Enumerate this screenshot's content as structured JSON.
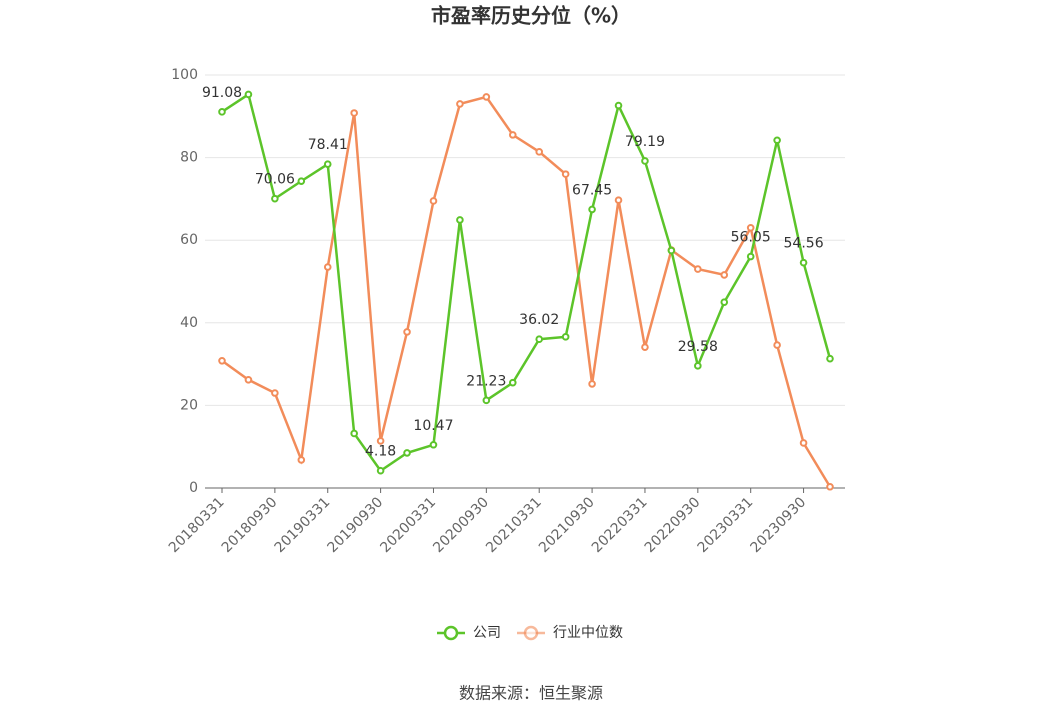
{
  "chart_data": {
    "type": "line",
    "title": "市盈率历史分位（%）",
    "categories": [
      "20180331",
      null,
      "20180930",
      null,
      "20190331",
      null,
      "20190930",
      null,
      "20200331",
      null,
      "20200930",
      null,
      "20210331",
      null,
      "20210930",
      null,
      "20220331",
      null,
      "20220930",
      null,
      "20230331",
      null,
      "20230930",
      null
    ],
    "series": [
      {
        "name": "公司",
        "color": "#5cc42a",
        "values": [
          91.08,
          95.3,
          70.06,
          74.3,
          78.41,
          13.2,
          4.18,
          8.5,
          10.47,
          64.9,
          21.23,
          25.5,
          36.02,
          36.6,
          67.45,
          92.6,
          79.19,
          57.5,
          29.58,
          45.0,
          56.05,
          84.2,
          54.56,
          31.3
        ],
        "value_labels": [
          "91.08",
          null,
          "70.06",
          null,
          "78.41",
          null,
          "4.18",
          null,
          "10.47",
          null,
          "21.23",
          null,
          "36.02",
          null,
          "67.45",
          null,
          "79.19",
          null,
          "29.58",
          null,
          "56.05",
          null,
          "54.56",
          null
        ]
      },
      {
        "name": "行业中位数",
        "color": "#f28c5a",
        "values": [
          30.8,
          26.2,
          23.0,
          6.8,
          53.5,
          90.8,
          11.4,
          37.8,
          69.5,
          93.0,
          94.7,
          85.5,
          81.4,
          76.0,
          25.2,
          69.7,
          34.1,
          57.6,
          53.0,
          51.6,
          63.0,
          34.6,
          10.9,
          0.3
        ]
      }
    ],
    "ylim": [
      0,
      100
    ],
    "yticks": [
      0,
      20,
      40,
      60,
      80,
      100
    ],
    "grid": true,
    "source": "数据来源：恒生聚源"
  }
}
